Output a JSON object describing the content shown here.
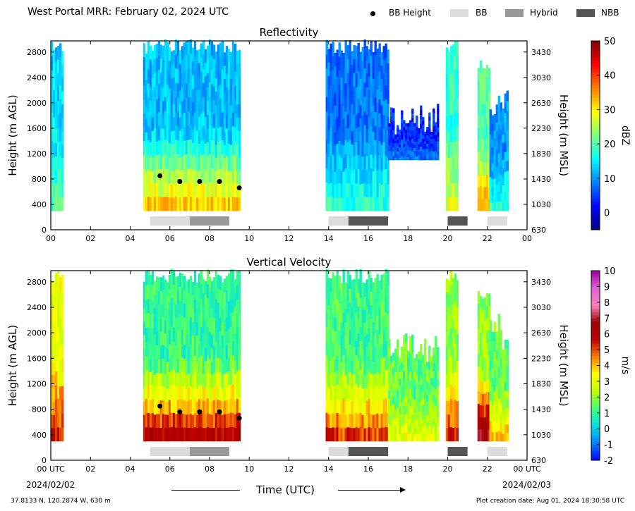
{
  "header": {
    "title": "West Portal MRR:  February 02, 2024 UTC",
    "legend": [
      {
        "label": "BB Height",
        "kind": "dot",
        "color": "#000000"
      },
      {
        "label": "BB",
        "kind": "box",
        "color": "#dcdcdc"
      },
      {
        "label": "Hybrid",
        "kind": "box",
        "color": "#999999"
      },
      {
        "label": "NBB",
        "kind": "box",
        "color": "#555555"
      }
    ]
  },
  "footer": {
    "location": "37.8133 N, 120.2874 W, 630 m",
    "creation_date": "Plot creation date: Aug 01, 2024 18:30:58 UTC",
    "xlabel": "Time (UTC)",
    "start_date": "2024/02/02",
    "end_date": "2024/02/03"
  },
  "chart_data": [
    {
      "type": "heatmap",
      "title": "Reflectivity",
      "ylabel": "Height (m AGL)",
      "y2label": "Height (m MSL)",
      "colorbar_label": "dBZ",
      "xlim": [
        0,
        24
      ],
      "ylim": [
        0,
        3000
      ],
      "x_ticks": [
        "00",
        "02",
        "04",
        "06",
        "08",
        "10",
        "12",
        "14",
        "16",
        "18",
        "20",
        "22",
        "00"
      ],
      "y_ticks": [
        "0",
        "400",
        "800",
        "1200",
        "1600",
        "2000",
        "2400",
        "2800"
      ],
      "y2_ticks": [
        "630",
        "1030",
        "1430",
        "1830",
        "2230",
        "2630",
        "3030",
        "3430"
      ],
      "colorbar": {
        "min": -5,
        "max": 50,
        "ticks": [
          "0",
          "10",
          "20",
          "30",
          "40",
          "50"
        ],
        "colors": [
          "#000080",
          "#0000ff",
          "#0080ff",
          "#00ffff",
          "#80ff80",
          "#ffff00",
          "#ff8000",
          "#ff0000",
          "#800000"
        ]
      },
      "bb_height": [
        {
          "x": 5.5,
          "y": 850
        },
        {
          "x": 6.5,
          "y": 760
        },
        {
          "x": 7.5,
          "y": 760
        },
        {
          "x": 8.5,
          "y": 760
        },
        {
          "x": 9.5,
          "y": 660
        }
      ],
      "bb_segments": [
        {
          "start": 5.0,
          "end": 7.0,
          "class": "BB"
        },
        {
          "start": 7.0,
          "end": 9.0,
          "class": "Hybrid"
        },
        {
          "start": 14.0,
          "end": 15.0,
          "class": "BB"
        },
        {
          "start": 15.0,
          "end": 17.0,
          "class": "NBB"
        },
        {
          "start": 20.0,
          "end": 21.0,
          "class": "NBB"
        },
        {
          "start": 22.0,
          "end": 23.0,
          "class": "BB"
        }
      ],
      "echo_periods": [
        {
          "start": 0.0,
          "end": 0.55,
          "top": 3000,
          "bottom": 300,
          "core": 20,
          "base": 14
        },
        {
          "start": 4.65,
          "end": 9.55,
          "top": 3000,
          "bottom": 300,
          "core": 32,
          "base": 12
        },
        {
          "start": 13.85,
          "end": 17.0,
          "top": 3000,
          "bottom": 300,
          "core": 18,
          "base": 8
        },
        {
          "start": 17.0,
          "end": 19.5,
          "top": 2000,
          "bottom": 1100,
          "core": 8,
          "base": 4
        },
        {
          "start": 19.9,
          "end": 20.5,
          "top": 3000,
          "bottom": 300,
          "core": 28,
          "base": 18
        },
        {
          "start": 21.5,
          "end": 22.1,
          "top": 2700,
          "bottom": 300,
          "core": 35,
          "base": 20
        },
        {
          "start": 22.1,
          "end": 23.0,
          "top": 2300,
          "bottom": 300,
          "core": 18,
          "base": 10
        }
      ]
    },
    {
      "type": "heatmap",
      "title": "Vertical Velocity",
      "ylabel": "Height (m AGL)",
      "y2label": "Height (m MSL)",
      "colorbar_label": "m/s",
      "xlim": [
        0,
        24
      ],
      "ylim": [
        0,
        3000
      ],
      "x_ticks": [
        "00 UTC",
        "02",
        "04",
        "06",
        "08",
        "10",
        "12",
        "14",
        "16",
        "18",
        "20",
        "22",
        "00 UTC"
      ],
      "y_ticks": [
        "0",
        "400",
        "800",
        "1200",
        "1600",
        "2000",
        "2400",
        "2800"
      ],
      "y2_ticks": [
        "630",
        "1030",
        "1430",
        "1830",
        "2230",
        "2630",
        "3030",
        "3430"
      ],
      "colorbar": {
        "min": -2,
        "max": 10,
        "ticks": [
          "-2",
          "-1",
          "0",
          "1",
          "2",
          "3",
          "4",
          "5",
          "6",
          "7",
          "8",
          "9",
          "10"
        ],
        "colors": [
          "#0000ff",
          "#0080ff",
          "#00e0e0",
          "#40ff80",
          "#c0ff00",
          "#ffff00",
          "#ff8000",
          "#c00000",
          "#a00000",
          "#ff80c0",
          "#e060d0",
          "#a000a0"
        ]
      },
      "bb_height": [
        {
          "x": 5.5,
          "y": 850
        },
        {
          "x": 6.5,
          "y": 760
        },
        {
          "x": 7.5,
          "y": 760
        },
        {
          "x": 8.5,
          "y": 760
        },
        {
          "x": 9.5,
          "y": 660
        }
      ],
      "bb_segments": [
        {
          "start": 5.0,
          "end": 7.0,
          "class": "BB"
        },
        {
          "start": 7.0,
          "end": 9.0,
          "class": "Hybrid"
        },
        {
          "start": 14.0,
          "end": 15.0,
          "class": "BB"
        },
        {
          "start": 15.0,
          "end": 17.0,
          "class": "NBB"
        },
        {
          "start": 20.0,
          "end": 21.0,
          "class": "NBB"
        },
        {
          "start": 22.0,
          "end": 23.0,
          "class": "BB"
        }
      ],
      "echo_periods": [
        {
          "start": 0.0,
          "end": 0.55,
          "top": 3000,
          "bottom": 300,
          "core": 5.5,
          "base": 3
        },
        {
          "start": 4.65,
          "end": 9.55,
          "top": 3000,
          "bottom": 300,
          "core": 6,
          "base": 1
        },
        {
          "start": 13.85,
          "end": 17.0,
          "top": 3000,
          "bottom": 300,
          "core": 5,
          "base": 1.2
        },
        {
          "start": 17.0,
          "end": 19.5,
          "top": 2000,
          "bottom": 300,
          "core": 3,
          "base": 1.5
        },
        {
          "start": 19.9,
          "end": 20.5,
          "top": 3000,
          "bottom": 300,
          "core": 5.5,
          "base": 2
        },
        {
          "start": 21.5,
          "end": 22.1,
          "top": 2700,
          "bottom": 300,
          "core": 7,
          "base": 2
        },
        {
          "start": 22.1,
          "end": 23.0,
          "top": 2300,
          "bottom": 300,
          "core": 4,
          "base": 1.5
        }
      ]
    }
  ]
}
